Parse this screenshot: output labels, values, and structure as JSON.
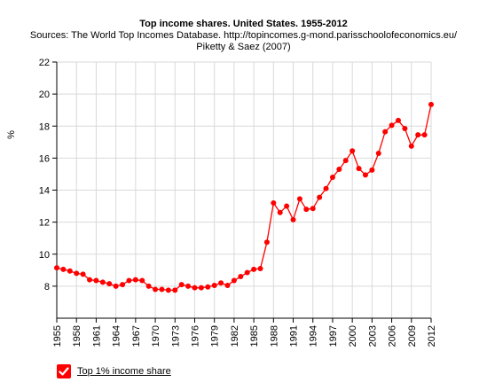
{
  "chart_data": {
    "type": "line",
    "title": "Top income shares. United States. 1955-2012",
    "subtitle_lines": [
      "Sources: The World Top Incomes Database. http://topincomes.g-mond.parisschoolofeconomics.eu/",
      "Piketty & Saez (2007)"
    ],
    "ylabel": "%",
    "xlabel": "",
    "ylim": [
      6,
      22
    ],
    "yticks": [
      8,
      10,
      12,
      14,
      16,
      18,
      20,
      22
    ],
    "xlim": [
      1955,
      2012
    ],
    "xticks": [
      1955,
      1958,
      1961,
      1964,
      1967,
      1970,
      1973,
      1976,
      1979,
      1982,
      1985,
      1988,
      1991,
      1994,
      1997,
      2000,
      2003,
      2006,
      2009,
      2012
    ],
    "grid": true,
    "legend_position": "bottom-left",
    "series": [
      {
        "name": "Top 1% income share",
        "color": "#ff0000",
        "x": [
          1955,
          1956,
          1957,
          1958,
          1959,
          1960,
          1961,
          1962,
          1963,
          1964,
          1965,
          1966,
          1967,
          1968,
          1969,
          1970,
          1971,
          1972,
          1973,
          1974,
          1975,
          1976,
          1977,
          1978,
          1979,
          1980,
          1981,
          1982,
          1983,
          1984,
          1985,
          1986,
          1987,
          1988,
          1989,
          1990,
          1991,
          1992,
          1993,
          1994,
          1995,
          1996,
          1997,
          1998,
          1999,
          2000,
          2001,
          2002,
          2003,
          2004,
          2005,
          2006,
          2007,
          2008,
          2009,
          2010,
          2011,
          2012
        ],
        "values": [
          9.15,
          9.05,
          8.95,
          8.8,
          8.75,
          8.4,
          8.35,
          8.25,
          8.15,
          8.0,
          8.1,
          8.35,
          8.4,
          8.35,
          8.0,
          7.8,
          7.8,
          7.75,
          7.75,
          8.1,
          8.0,
          7.9,
          7.9,
          7.95,
          8.05,
          8.2,
          8.05,
          8.35,
          8.6,
          8.85,
          9.05,
          9.1,
          10.75,
          13.2,
          12.6,
          13.0,
          12.15,
          13.45,
          12.8,
          12.85,
          13.55,
          14.1,
          14.8,
          15.3,
          15.85,
          16.45,
          15.35,
          14.95,
          15.25,
          16.3,
          17.65,
          18.05,
          18.35,
          17.85,
          16.75,
          17.45,
          17.45,
          19.35
        ]
      }
    ]
  }
}
